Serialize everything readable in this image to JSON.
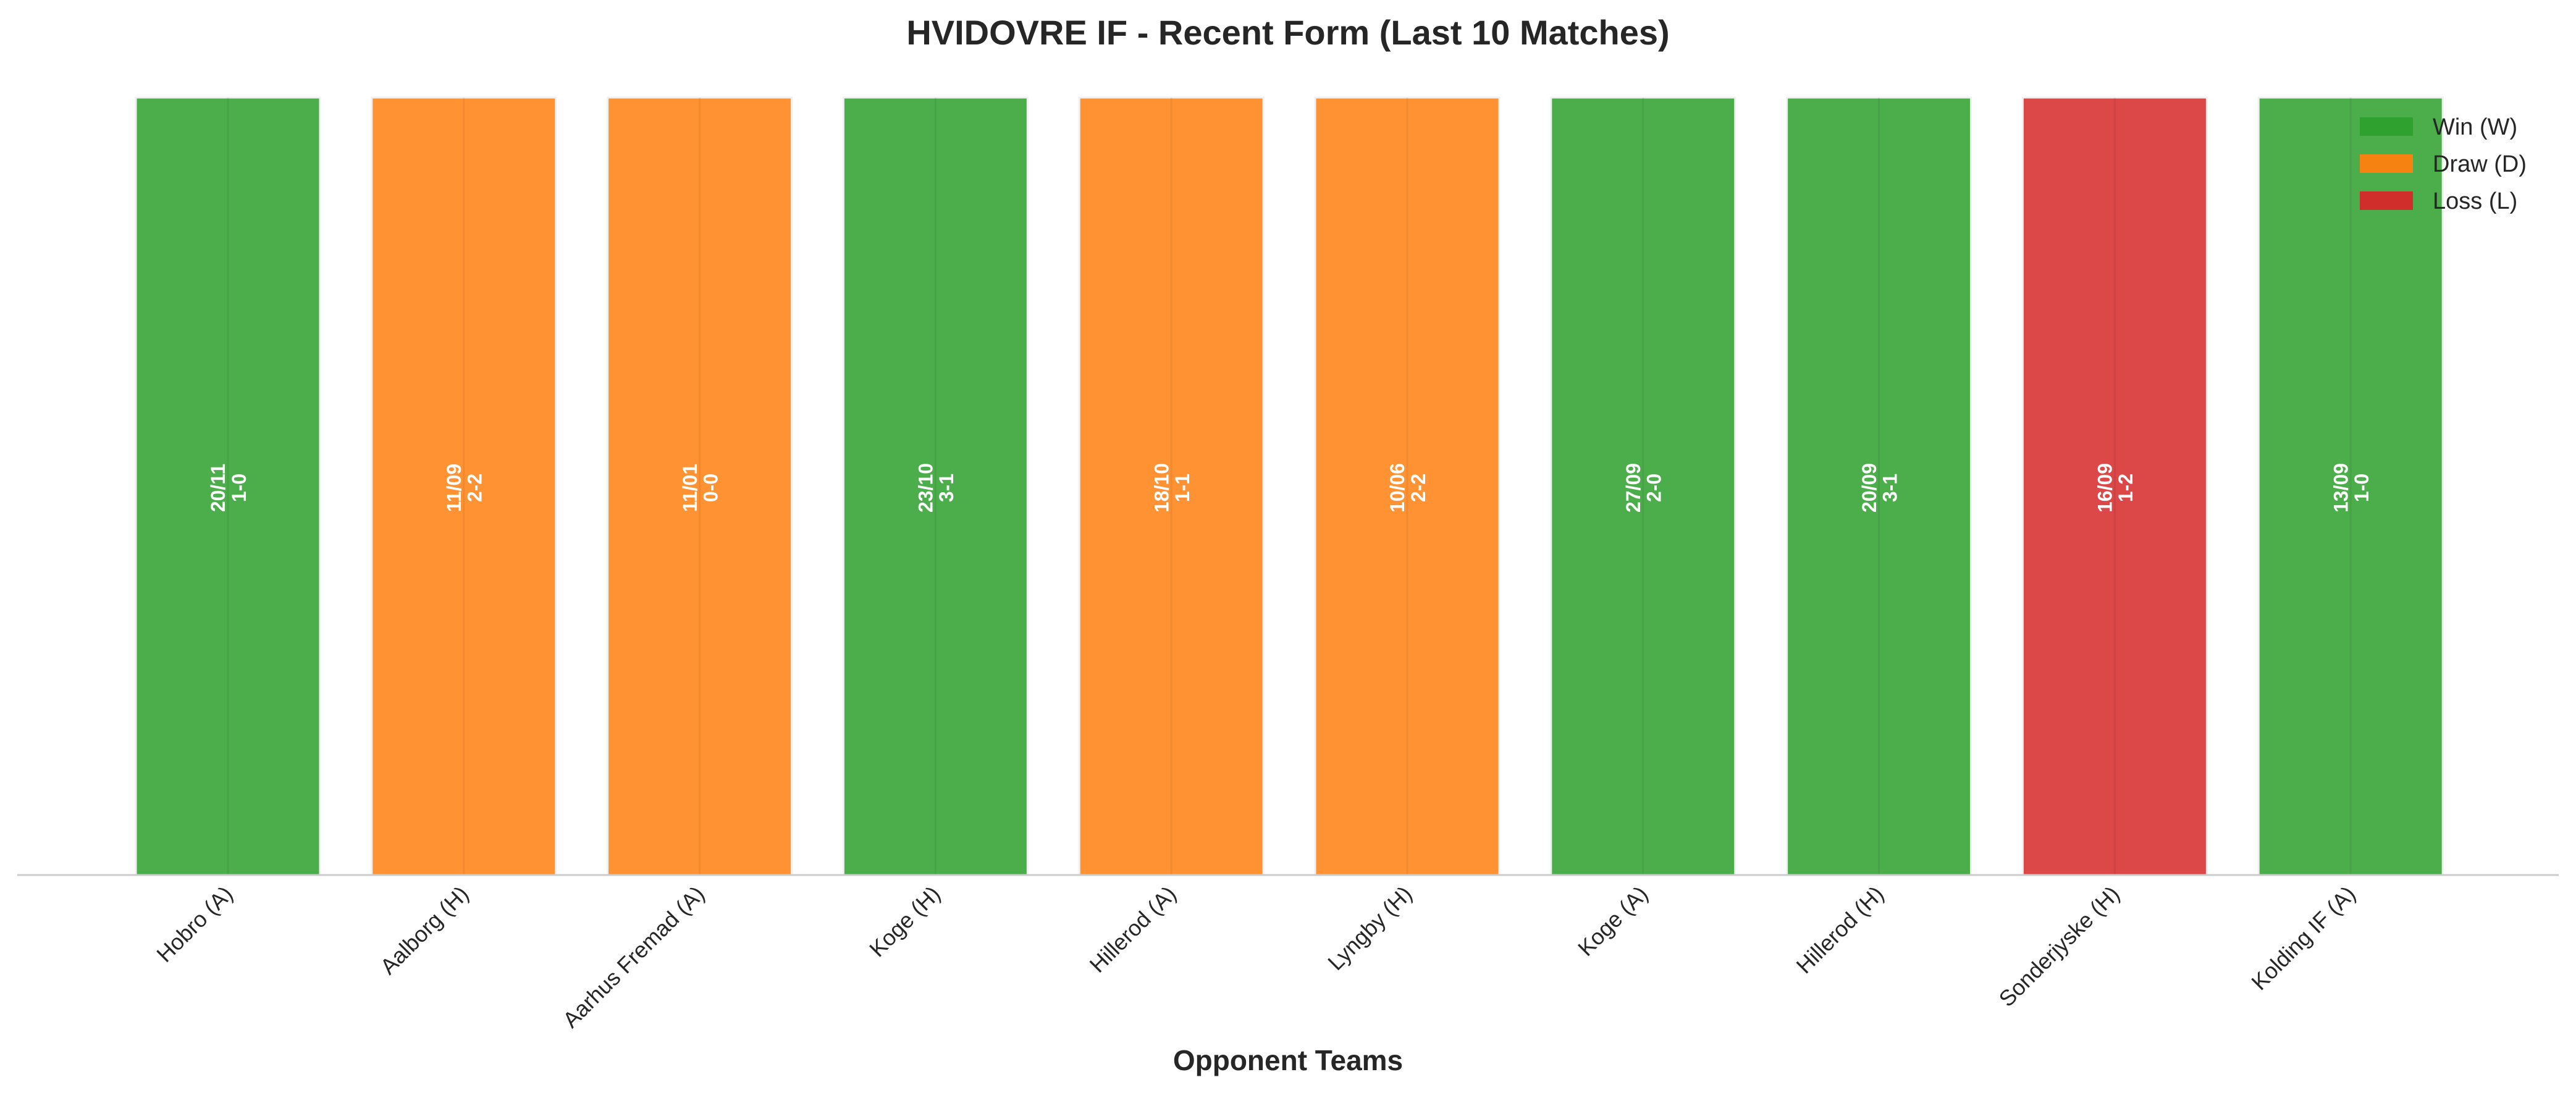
{
  "chart_data": {
    "type": "bar",
    "title": "HVIDOVRE IF - Recent Form (Last 10 Matches)",
    "xlabel": "Opponent Teams",
    "ylabel": "",
    "grid": false,
    "legend_position": "top-right",
    "categories": [
      "Hobro (A)",
      "Aalborg (H)",
      "Aarhus Fremad (A)",
      "Koge (H)",
      "Hillerod (A)",
      "Lyngby (H)",
      "Koge (A)",
      "Hillerod (H)",
      "Sonderjyske (H)",
      "Kolding IF (A)"
    ],
    "values": [
      1,
      1,
      1,
      1,
      1,
      1,
      1,
      1,
      1,
      1
    ],
    "results": [
      "W",
      "D",
      "D",
      "W",
      "D",
      "D",
      "W",
      "W",
      "L",
      "W"
    ],
    "dates": [
      "20/11",
      "11/09",
      "11/01",
      "23/10",
      "18/10",
      "10/06",
      "27/09",
      "20/09",
      "16/09",
      "13/09"
    ],
    "scores": [
      "1-0",
      "2-2",
      "0-0",
      "3-1",
      "1-1",
      "2-2",
      "2-0",
      "3-1",
      "1-2",
      "1-0"
    ],
    "colors": {
      "W": "#2ca02c",
      "D": "#ff7f0e",
      "L": "#d62728"
    },
    "legend": [
      {
        "key": "W",
        "label": "Win (W)"
      },
      {
        "key": "D",
        "label": "Draw (D)"
      },
      {
        "key": "L",
        "label": "Loss (L)"
      }
    ]
  }
}
